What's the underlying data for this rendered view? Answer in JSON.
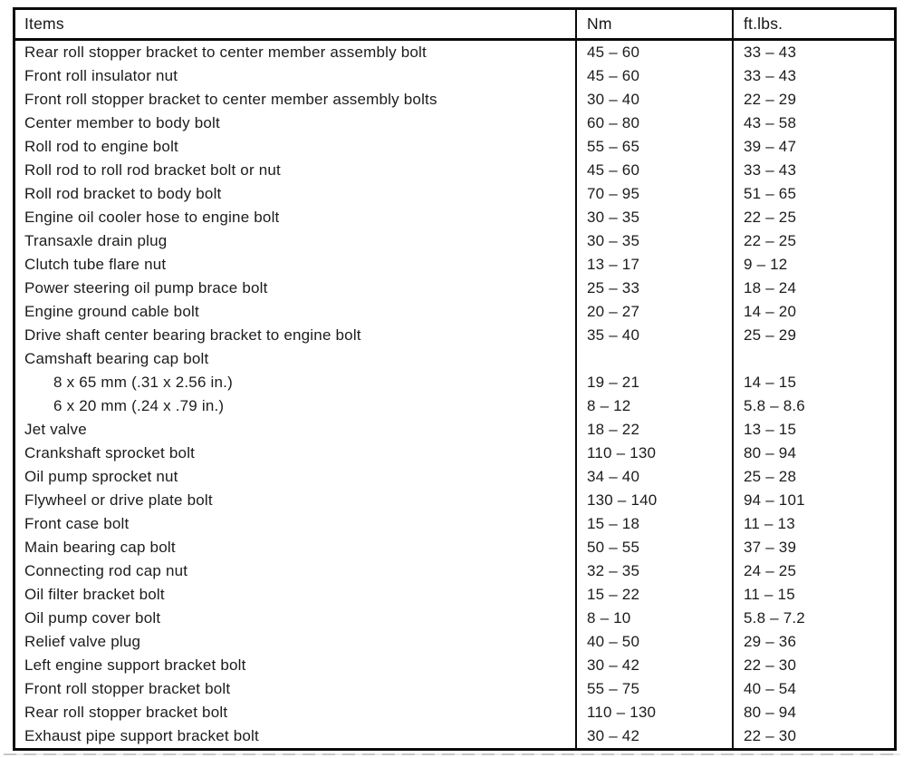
{
  "table": {
    "headers": {
      "items": "Items",
      "nm": "Nm",
      "ftlbs": "ft.lbs."
    },
    "rows": [
      {
        "item": "Rear roll stopper bracket to center member assembly bolt",
        "nm": "45 – 60",
        "ftlbs": "33 – 43",
        "indent": false
      },
      {
        "item": "Front roll insulator nut",
        "nm": "45 – 60",
        "ftlbs": "33 – 43",
        "indent": false
      },
      {
        "item": "Front roll stopper bracket to center member assembly bolts",
        "nm": "30 – 40",
        "ftlbs": "22 – 29",
        "indent": false
      },
      {
        "item": "Center member to body bolt",
        "nm": "60 – 80",
        "ftlbs": "43 – 58",
        "indent": false
      },
      {
        "item": "Roll rod to engine bolt",
        "nm": "55 – 65",
        "ftlbs": "39 – 47",
        "indent": false
      },
      {
        "item": "Roll rod to roll rod bracket bolt or nut",
        "nm": "45 – 60",
        "ftlbs": "33 – 43",
        "indent": false
      },
      {
        "item": "Roll rod bracket to body bolt",
        "nm": "70 – 95",
        "ftlbs": "51 – 65",
        "indent": false
      },
      {
        "item": "Engine oil cooler hose to engine bolt",
        "nm": "30 – 35",
        "ftlbs": "22 – 25",
        "indent": false
      },
      {
        "item": "Transaxle drain plug",
        "nm": "30 – 35",
        "ftlbs": "22 – 25",
        "indent": false
      },
      {
        "item": "Clutch tube flare nut",
        "nm": "13 – 17",
        "ftlbs": "9 – 12",
        "indent": false
      },
      {
        "item": "Power steering oil pump brace bolt",
        "nm": "25 – 33",
        "ftlbs": "18 – 24",
        "indent": false
      },
      {
        "item": "Engine ground cable bolt",
        "nm": "20 – 27",
        "ftlbs": "14 – 20",
        "indent": false
      },
      {
        "item": "Drive shaft center bearing bracket to engine bolt",
        "nm": "35 – 40",
        "ftlbs": "25 – 29",
        "indent": false
      },
      {
        "item": "Camshaft bearing cap bolt",
        "nm": "",
        "ftlbs": "",
        "indent": false
      },
      {
        "item": "8 x 65 mm (.31 x 2.56 in.)",
        "nm": "19 – 21",
        "ftlbs": "14 – 15",
        "indent": true
      },
      {
        "item": "6 x 20 mm (.24 x .79 in.)",
        "nm": "8 – 12",
        "ftlbs": "5.8 – 8.6",
        "indent": true
      },
      {
        "item": "Jet valve",
        "nm": "18 – 22",
        "ftlbs": "13 – 15",
        "indent": false
      },
      {
        "item": "Crankshaft sprocket bolt",
        "nm": "110 – 130",
        "ftlbs": "80 – 94",
        "indent": false
      },
      {
        "item": "Oil pump sprocket nut",
        "nm": "34 – 40",
        "ftlbs": "25 – 28",
        "indent": false
      },
      {
        "item": "Flywheel or drive plate bolt",
        "nm": "130 – 140",
        "ftlbs": "94 – 101",
        "indent": false
      },
      {
        "item": "Front case bolt",
        "nm": "15 – 18",
        "ftlbs": "11 – 13",
        "indent": false
      },
      {
        "item": "Main bearing cap bolt",
        "nm": "50 – 55",
        "ftlbs": "37 – 39",
        "indent": false
      },
      {
        "item": "Connecting rod cap nut",
        "nm": "32 – 35",
        "ftlbs": "24 – 25",
        "indent": false
      },
      {
        "item": "Oil filter bracket bolt",
        "nm": "15 – 22",
        "ftlbs": "11 – 15",
        "indent": false
      },
      {
        "item": "Oil pump cover bolt",
        "nm": "8 – 10",
        "ftlbs": "5.8 – 7.2",
        "indent": false
      },
      {
        "item": "Relief valve plug",
        "nm": "40 – 50",
        "ftlbs": "29 – 36",
        "indent": false
      },
      {
        "item": "Left engine support bracket bolt",
        "nm": "30 – 42",
        "ftlbs": "22 – 30",
        "indent": false
      },
      {
        "item": "Front roll stopper bracket bolt",
        "nm": "55 – 75",
        "ftlbs": "40 – 54",
        "indent": false
      },
      {
        "item": "Rear roll stopper bracket bolt",
        "nm": "110 – 130",
        "ftlbs": "80 – 94",
        "indent": false
      },
      {
        "item": "Exhaust pipe support bracket bolt",
        "nm": "30 – 42",
        "ftlbs": "22 – 30",
        "indent": false
      }
    ]
  },
  "colors": {
    "border": "#0a0a0a",
    "text": "#1c1c1c",
    "background": "#ffffff"
  }
}
